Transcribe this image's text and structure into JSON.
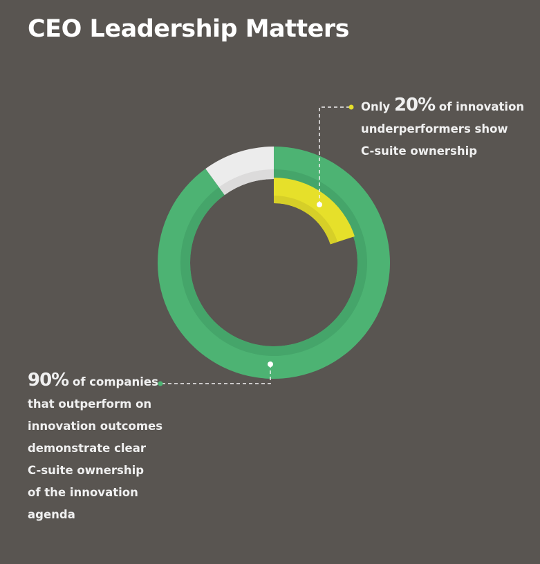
{
  "title": "CEO Leadership Matters",
  "annotations": {
    "top": {
      "prefix": "Only ",
      "value": "20%",
      "lines": [
        " of innovation",
        "underperformers show",
        "C-suite ownership"
      ]
    },
    "bottom": {
      "value": "90%",
      "lines": [
        " of companies",
        "that outperform on",
        "innovation outcomes",
        "demonstrate clear",
        "C-suite ownership",
        "of the innovation",
        "agenda"
      ]
    }
  },
  "chart_data": {
    "type": "pie",
    "variant": "nested-donut",
    "title": "CEO Leadership Matters",
    "series": [
      {
        "name": "Companies that outperform on innovation outcomes with clear C-suite ownership",
        "ring": "outer",
        "value": 90,
        "remainder": 10,
        "color": "#4db373",
        "remainder_color": "#ececec"
      },
      {
        "name": "Innovation underperformers with C-suite ownership",
        "ring": "inner",
        "value": 20,
        "color": "#e6e02a"
      }
    ],
    "unit": "%"
  }
}
